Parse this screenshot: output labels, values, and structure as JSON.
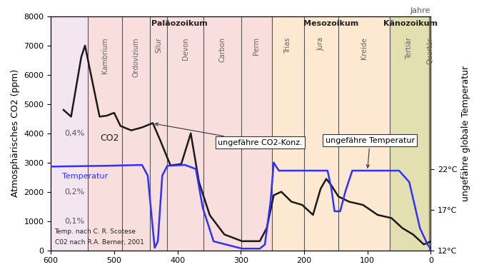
{
  "chart_data": {
    "type": "line",
    "xlim": [
      600,
      0
    ],
    "xticks": [
      600,
      500,
      400,
      300,
      200,
      100,
      0
    ],
    "ylim": [
      0,
      8000
    ],
    "yticks": [
      0,
      1000,
      2000,
      3000,
      4000,
      5000,
      6000,
      7000,
      8000
    ],
    "y_label": "Atmosphärisches CO2 (ppm)",
    "y2lim": [
      12,
      40.8
    ],
    "y2ticks": [
      {
        "value": 12,
        "label": "12°C"
      },
      {
        "value": 17,
        "label": "17°C"
      },
      {
        "value": 22,
        "label": "22°C"
      }
    ],
    "y2_label": "ungefähre globale Temperatur",
    "x_label": "Jahre",
    "eras": [
      {
        "name": "Paläozoikum",
        "start": 542,
        "end": 251,
        "color": "#f9dede"
      },
      {
        "name": "Mesozoikum",
        "start": 251,
        "end": 65,
        "color": "#fde8d2"
      },
      {
        "name": "Känozoikum",
        "start": 65,
        "end": 0,
        "color": "#e2e0b0"
      }
    ],
    "periods": [
      {
        "name": "Kambrium",
        "start": 542,
        "end": 488
      },
      {
        "name": "Ordovizium",
        "start": 488,
        "end": 444
      },
      {
        "name": "Silur",
        "start": 444,
        "end": 416
      },
      {
        "name": "Devon",
        "start": 416,
        "end": 359
      },
      {
        "name": "Carbon",
        "start": 359,
        "end": 299
      },
      {
        "name": "Perm",
        "start": 299,
        "end": 251
      },
      {
        "name": "Trias",
        "start": 251,
        "end": 200
      },
      {
        "name": "Jura",
        "start": 200,
        "end": 146
      },
      {
        "name": "Kreide",
        "start": 146,
        "end": 65
      },
      {
        "name": "Tertiär",
        "start": 65,
        "end": 2.6
      },
      {
        "name": "Quartär",
        "start": 2.6,
        "end": 0
      }
    ],
    "series": [
      {
        "name": "CO2",
        "color": "#1a1a1a",
        "axis": "y",
        "x": [
          580,
          568,
          552,
          546,
          538,
          523,
          512,
          500,
          490,
          473,
          456,
          439,
          428,
          411,
          394,
          379,
          366,
          349,
          326,
          298,
          270,
          259,
          248,
          236,
          220,
          203,
          186,
          174,
          165,
          157,
          146,
          129,
          107,
          84,
          62,
          45,
          28,
          11,
          0
        ],
        "values": [
          4800,
          4570,
          6600,
          7000,
          6150,
          4570,
          4600,
          4700,
          4250,
          4100,
          4200,
          4350,
          3800,
          2900,
          2950,
          4000,
          2330,
          1200,
          540,
          310,
          310,
          760,
          1880,
          2000,
          1660,
          1550,
          1210,
          2100,
          2440,
          2220,
          1840,
          1660,
          1550,
          1210,
          1100,
          760,
          540,
          200,
          300
        ]
      },
      {
        "name": "Temperatur",
        "color": "#3030ff",
        "axis": "y2",
        "x": [
          600,
          512,
          456,
          447,
          439,
          436,
          431,
          424,
          416,
          388,
          371,
          360,
          343,
          298,
          270,
          262,
          253,
          248,
          240,
          208,
          163,
          157,
          152,
          143,
          135,
          124,
          50,
          34,
          17,
          5,
          0
        ],
        "values": [
          22.3,
          22.4,
          22.5,
          21.2,
          14.7,
          12.3,
          13.1,
          21.2,
          22.4,
          22.5,
          22,
          17.2,
          13.1,
          12.2,
          12.2,
          12.7,
          18,
          22.8,
          21.8,
          21.8,
          21.8,
          19.6,
          16.8,
          16.8,
          19.2,
          21.8,
          21.8,
          20.4,
          14.7,
          12.7,
          12.2
        ]
      }
    ],
    "annotations": [
      {
        "text": "ungefähre CO2-Konz.",
        "series": "CO2",
        "x": 440
      },
      {
        "text": "ungefähre Temperatur",
        "series": "Temperatur",
        "x": 100
      }
    ],
    "percent_labels": [
      {
        "value": 4000,
        "label": "0,4%"
      },
      {
        "value": 2000,
        "label": "0,2%"
      },
      {
        "value": 1000,
        "label": "0,1%"
      }
    ],
    "sources": [
      "Temp. nach C. R. Scotese",
      "C02 nach R.A. Berner, 2001"
    ]
  }
}
